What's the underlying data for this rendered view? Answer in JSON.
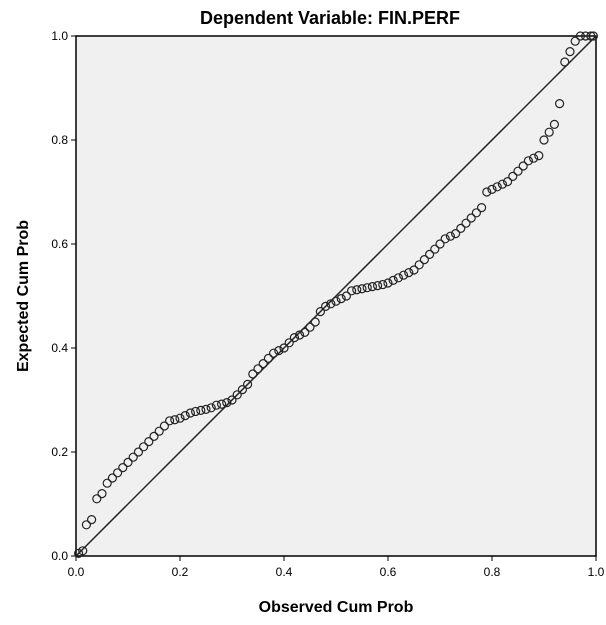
{
  "chart_data": {
    "type": "scatter",
    "title": "Dependent Variable: FIN.PERF",
    "xlabel": "Observed Cum Prob",
    "ylabel": "Expected Cum Prob",
    "xlim": [
      0.0,
      1.0
    ],
    "ylim": [
      0.0,
      1.0
    ],
    "xticks": [
      0.0,
      0.2,
      0.4,
      0.6,
      0.8,
      1.0
    ],
    "yticks": [
      0.0,
      0.2,
      0.4,
      0.6,
      0.8,
      1.0
    ],
    "xtick_labels": [
      "0.0",
      "0.2",
      "0.4",
      "0.6",
      "0.8",
      "1.0"
    ],
    "ytick_labels": [
      "0.0",
      "0.2",
      "0.4",
      "0.6",
      "0.8",
      "1.0"
    ],
    "grid": false,
    "reference_line": {
      "from": [
        0,
        0
      ],
      "to": [
        1,
        1
      ]
    },
    "colors": {
      "plot_background": "#f0f0f0",
      "marker_stroke": "#222222",
      "line": "#222222"
    },
    "points": [
      [
        0.005,
        0.005
      ],
      [
        0.013,
        0.01
      ],
      [
        0.02,
        0.06
      ],
      [
        0.03,
        0.07
      ],
      [
        0.04,
        0.11
      ],
      [
        0.05,
        0.12
      ],
      [
        0.06,
        0.14
      ],
      [
        0.07,
        0.15
      ],
      [
        0.08,
        0.16
      ],
      [
        0.09,
        0.17
      ],
      [
        0.1,
        0.18
      ],
      [
        0.11,
        0.19
      ],
      [
        0.12,
        0.2
      ],
      [
        0.13,
        0.21
      ],
      [
        0.14,
        0.22
      ],
      [
        0.15,
        0.23
      ],
      [
        0.16,
        0.24
      ],
      [
        0.17,
        0.25
      ],
      [
        0.18,
        0.26
      ],
      [
        0.19,
        0.262
      ],
      [
        0.2,
        0.265
      ],
      [
        0.21,
        0.27
      ],
      [
        0.22,
        0.275
      ],
      [
        0.23,
        0.278
      ],
      [
        0.24,
        0.28
      ],
      [
        0.25,
        0.282
      ],
      [
        0.26,
        0.285
      ],
      [
        0.27,
        0.29
      ],
      [
        0.28,
        0.292
      ],
      [
        0.29,
        0.295
      ],
      [
        0.3,
        0.3
      ],
      [
        0.31,
        0.31
      ],
      [
        0.32,
        0.32
      ],
      [
        0.33,
        0.33
      ],
      [
        0.34,
        0.35
      ],
      [
        0.35,
        0.36
      ],
      [
        0.36,
        0.37
      ],
      [
        0.37,
        0.38
      ],
      [
        0.38,
        0.39
      ],
      [
        0.39,
        0.395
      ],
      [
        0.4,
        0.4
      ],
      [
        0.41,
        0.41
      ],
      [
        0.42,
        0.42
      ],
      [
        0.43,
        0.425
      ],
      [
        0.44,
        0.43
      ],
      [
        0.45,
        0.44
      ],
      [
        0.46,
        0.45
      ],
      [
        0.47,
        0.47
      ],
      [
        0.48,
        0.48
      ],
      [
        0.49,
        0.485
      ],
      [
        0.5,
        0.49
      ],
      [
        0.51,
        0.495
      ],
      [
        0.52,
        0.5
      ],
      [
        0.53,
        0.51
      ],
      [
        0.54,
        0.512
      ],
      [
        0.55,
        0.514
      ],
      [
        0.56,
        0.516
      ],
      [
        0.57,
        0.518
      ],
      [
        0.58,
        0.52
      ],
      [
        0.59,
        0.522
      ],
      [
        0.6,
        0.525
      ],
      [
        0.61,
        0.53
      ],
      [
        0.62,
        0.535
      ],
      [
        0.63,
        0.54
      ],
      [
        0.64,
        0.545
      ],
      [
        0.65,
        0.55
      ],
      [
        0.66,
        0.56
      ],
      [
        0.67,
        0.57
      ],
      [
        0.68,
        0.58
      ],
      [
        0.69,
        0.59
      ],
      [
        0.7,
        0.6
      ],
      [
        0.71,
        0.61
      ],
      [
        0.72,
        0.615
      ],
      [
        0.73,
        0.62
      ],
      [
        0.74,
        0.63
      ],
      [
        0.75,
        0.64
      ],
      [
        0.76,
        0.65
      ],
      [
        0.77,
        0.66
      ],
      [
        0.78,
        0.67
      ],
      [
        0.79,
        0.7
      ],
      [
        0.8,
        0.705
      ],
      [
        0.81,
        0.71
      ],
      [
        0.82,
        0.715
      ],
      [
        0.83,
        0.72
      ],
      [
        0.84,
        0.73
      ],
      [
        0.85,
        0.74
      ],
      [
        0.86,
        0.75
      ],
      [
        0.87,
        0.76
      ],
      [
        0.88,
        0.765
      ],
      [
        0.89,
        0.77
      ],
      [
        0.9,
        0.8
      ],
      [
        0.91,
        0.815
      ],
      [
        0.92,
        0.83
      ],
      [
        0.93,
        0.87
      ],
      [
        0.94,
        0.95
      ],
      [
        0.95,
        0.97
      ],
      [
        0.96,
        0.99
      ],
      [
        0.97,
        1.0
      ],
      [
        0.98,
        1.0
      ],
      [
        0.99,
        1.0
      ],
      [
        0.995,
        1.0
      ]
    ]
  }
}
